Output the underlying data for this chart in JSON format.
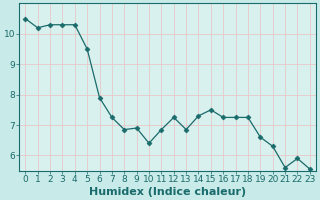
{
  "x": [
    0,
    1,
    2,
    3,
    4,
    5,
    6,
    7,
    8,
    9,
    10,
    11,
    12,
    13,
    14,
    15,
    16,
    17,
    18,
    19,
    20,
    21,
    22,
    23
  ],
  "y": [
    10.5,
    10.2,
    10.3,
    10.3,
    10.3,
    9.5,
    7.9,
    7.25,
    6.85,
    6.9,
    6.4,
    6.85,
    7.25,
    6.85,
    7.3,
    7.5,
    7.25,
    7.25,
    7.25,
    6.6,
    6.3,
    5.6,
    5.9,
    5.55
  ],
  "line_color": "#1a6b6b",
  "marker": "D",
  "marker_size": 2.5,
  "bg_color": "#c8eae8",
  "plot_bg_color": "#d8f0ee",
  "grid_color": "#e8c8c8",
  "xlabel": "Humidex (Indice chaleur)",
  "ylabel": "",
  "xlim": [
    -0.5,
    23.5
  ],
  "ylim": [
    5.5,
    11.0
  ],
  "yticks": [
    6,
    7,
    8,
    9,
    10
  ],
  "xticks": [
    0,
    1,
    2,
    3,
    4,
    5,
    6,
    7,
    8,
    9,
    10,
    11,
    12,
    13,
    14,
    15,
    16,
    17,
    18,
    19,
    20,
    21,
    22,
    23
  ],
  "tick_label_fontsize": 6.5,
  "xlabel_fontsize": 8,
  "tick_color": "#1a6b6b",
  "axis_color": "#1a6b6b"
}
